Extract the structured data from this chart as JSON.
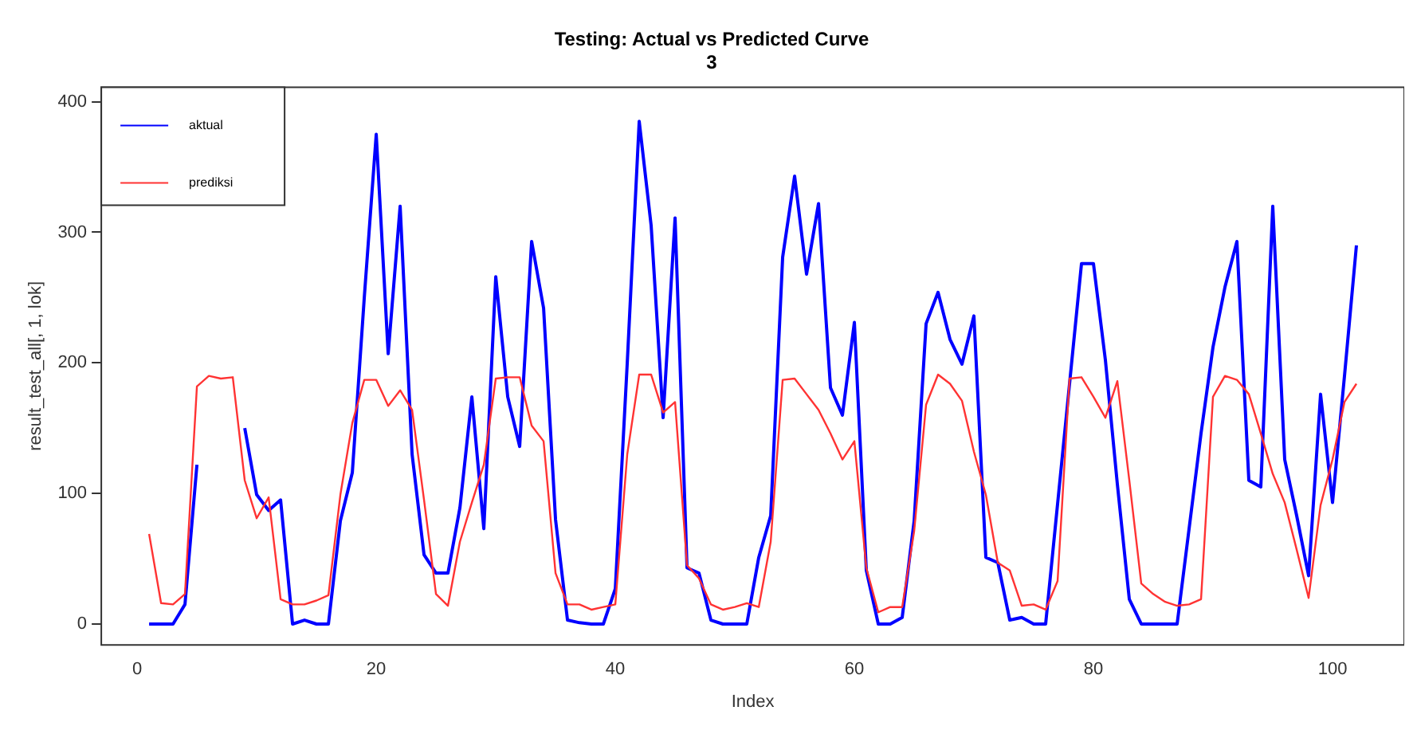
{
  "chart_data": {
    "type": "line",
    "title": "Testing: Actual vs Predicted Curve",
    "subtitle": "3",
    "xlabel": "Index",
    "ylabel": "result_test_all[, 1, lok]",
    "x": [
      1,
      2,
      3,
      4,
      5,
      6,
      7,
      8,
      9,
      10,
      11,
      12,
      13,
      14,
      15,
      16,
      17,
      18,
      19,
      20,
      21,
      22,
      23,
      24,
      25,
      26,
      27,
      28,
      29,
      30,
      31,
      32,
      33,
      34,
      35,
      36,
      37,
      38,
      39,
      40,
      41,
      42,
      43,
      44,
      45,
      46,
      47,
      48,
      49,
      50,
      51,
      52,
      53,
      54,
      55,
      56,
      57,
      58,
      59,
      60,
      61,
      62,
      63,
      64,
      65,
      66,
      67,
      68,
      69,
      70,
      71,
      72,
      73,
      74,
      75,
      76,
      77,
      78,
      79,
      80,
      81,
      82,
      83,
      84,
      85,
      86,
      87,
      88,
      89,
      90,
      91,
      92,
      93,
      94,
      95,
      96,
      97,
      98,
      99,
      100,
      101,
      102
    ],
    "series": [
      {
        "name": "aktual",
        "color": "#0000ff",
        "values": [
          0,
          0,
          0,
          15,
          122,
          null,
          null,
          null,
          150,
          99,
          87,
          95,
          0,
          3,
          0,
          0,
          79,
          116,
          250,
          375,
          207,
          320,
          130,
          53,
          39,
          39,
          89,
          174,
          73,
          266,
          174,
          136,
          293,
          242,
          80,
          3,
          1,
          0,
          0,
          27,
          200,
          385,
          305,
          158,
          311,
          43,
          39,
          3,
          0,
          0,
          0,
          51,
          83,
          281,
          343,
          268,
          322,
          181,
          160,
          231,
          41,
          0,
          0,
          5,
          79,
          230,
          254,
          218,
          199,
          236,
          51,
          47,
          3,
          5,
          0,
          0,
          92,
          184,
          276,
          276,
          202,
          107,
          19,
          0,
          0,
          0,
          0,
          73,
          146,
          212,
          258,
          293,
          110,
          105,
          320,
          126,
          83,
          37,
          176,
          93,
          190,
          290
        ]
      },
      {
        "name": "prediksi",
        "color": "#ff3333",
        "values": [
          69,
          16,
          15,
          23,
          182,
          190,
          188,
          189,
          110,
          81,
          97,
          19,
          15,
          15,
          18,
          22,
          99,
          154,
          187,
          187,
          167,
          179,
          164,
          95,
          23,
          14,
          63,
          93,
          122,
          188,
          189,
          189,
          152,
          140,
          39,
          15,
          15,
          11,
          13,
          15,
          130,
          191,
          191,
          162,
          170,
          45,
          35,
          15,
          11,
          13,
          16,
          13,
          63,
          187,
          188,
          176,
          164,
          146,
          126,
          140,
          43,
          9,
          13,
          13,
          71,
          168,
          191,
          184,
          171,
          132,
          99,
          47,
          41,
          14,
          15,
          11,
          33,
          188,
          189,
          174,
          158,
          186,
          110,
          31,
          23,
          17,
          14,
          15,
          19,
          174,
          190,
          187,
          176,
          146,
          115,
          93,
          57,
          20,
          91,
          126,
          170,
          184
        ]
      }
    ],
    "xlim": [
      -3,
      106
    ],
    "xticks": [
      0,
      20,
      40,
      60,
      80,
      100
    ],
    "ylim": [
      -16,
      411
    ],
    "yticks": [
      0,
      100,
      200,
      300,
      400
    ],
    "grid": false,
    "legend": "top left",
    "line_style": "solid",
    "marker": "none"
  }
}
